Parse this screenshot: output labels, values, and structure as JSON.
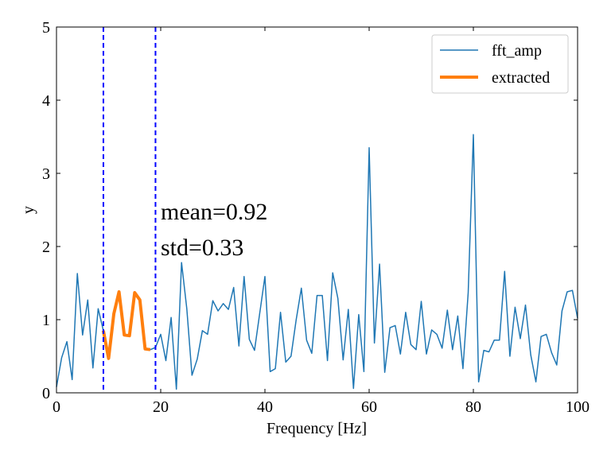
{
  "chart_data": {
    "type": "line",
    "title": "",
    "xlabel": "Frequency [Hz]",
    "ylabel": "y",
    "xlim": [
      0,
      100
    ],
    "ylim": [
      0,
      5
    ],
    "xticks": [
      "0",
      "20",
      "40",
      "60",
      "80",
      "100"
    ],
    "yticks": [
      "0",
      "1",
      "2",
      "3",
      "4",
      "5"
    ],
    "grid": false,
    "legend_position": "top-right",
    "series": [
      {
        "name": "fft_amp",
        "color": "#1f77b4",
        "x": [
          0,
          1,
          2,
          3,
          4,
          5,
          6,
          7,
          8,
          9,
          10,
          11,
          12,
          13,
          14,
          15,
          16,
          17,
          18,
          19,
          20,
          21,
          22,
          23,
          24,
          25,
          26,
          27,
          28,
          29,
          30,
          31,
          32,
          33,
          34,
          35,
          36,
          37,
          38,
          39,
          40,
          41,
          42,
          43,
          44,
          45,
          46,
          47,
          48,
          49,
          50,
          51,
          52,
          53,
          54,
          55,
          56,
          57,
          58,
          59,
          60,
          61,
          62,
          63,
          64,
          65,
          66,
          67,
          68,
          69,
          70,
          71,
          72,
          73,
          74,
          75,
          76,
          77,
          78,
          79,
          80,
          81,
          82,
          83,
          84,
          85,
          86,
          87,
          88,
          89,
          90,
          91,
          92,
          93,
          94,
          95,
          96,
          97,
          98,
          99,
          100
        ],
        "y": [
          0.08,
          0.48,
          0.7,
          0.18,
          1.63,
          0.79,
          1.27,
          0.34,
          1.15,
          0.85,
          0.47,
          1.08,
          1.38,
          0.79,
          0.78,
          1.37,
          1.27,
          0.6,
          0.59,
          0.62,
          0.8,
          0.44,
          1.03,
          0.05,
          1.78,
          1.15,
          0.24,
          0.46,
          0.85,
          0.8,
          1.26,
          1.12,
          1.22,
          1.14,
          1.44,
          0.64,
          1.59,
          0.73,
          0.58,
          1.09,
          1.59,
          0.29,
          0.33,
          1.1,
          0.42,
          0.5,
          1.0,
          1.43,
          0.72,
          0.54,
          1.33,
          1.33,
          0.44,
          1.64,
          1.29,
          0.45,
          1.14,
          0.06,
          1.07,
          0.29,
          3.35,
          0.68,
          1.76,
          0.28,
          0.89,
          0.92,
          0.53,
          1.1,
          0.66,
          0.59,
          1.25,
          0.53,
          0.86,
          0.8,
          0.61,
          1.13,
          0.59,
          1.05,
          0.33,
          1.37,
          3.53,
          0.15,
          0.58,
          0.56,
          0.72,
          0.72,
          1.66,
          0.5,
          1.17,
          0.74,
          1.2,
          0.52,
          0.15,
          0.77,
          0.8,
          0.55,
          0.38,
          1.12,
          1.38,
          1.4,
          1.02
        ]
      },
      {
        "name": "extracted",
        "color": "#ff7f0e",
        "x": [
          9,
          10,
          11,
          12,
          13,
          14,
          15,
          16,
          17,
          18
        ],
        "y": [
          0.85,
          0.47,
          1.08,
          1.38,
          0.79,
          0.78,
          1.37,
          1.27,
          0.6,
          0.59
        ]
      }
    ],
    "vlines": {
      "x": [
        9,
        19
      ],
      "color": "#0000ff",
      "style": "dashed"
    },
    "annotations": [
      "mean=0.92",
      "std=0.33"
    ]
  }
}
